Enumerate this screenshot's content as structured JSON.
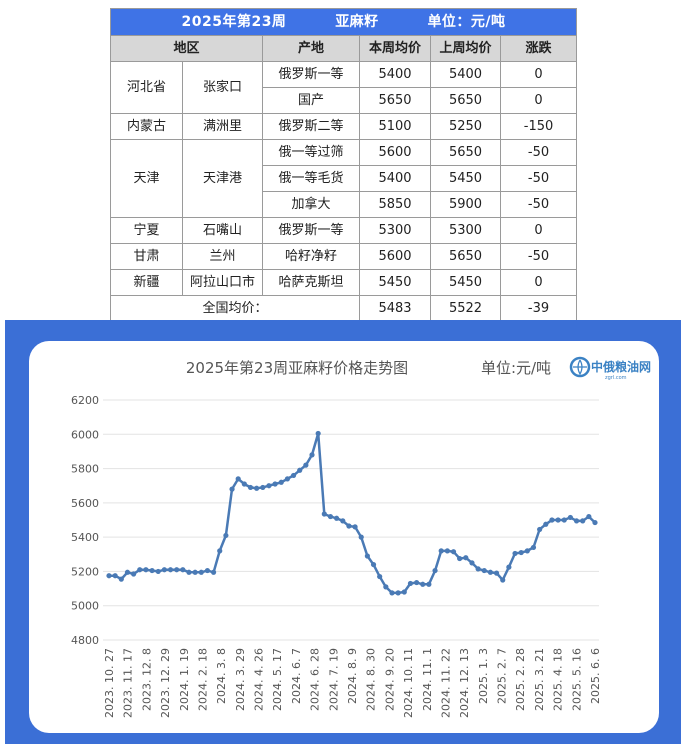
{
  "table": {
    "banner": {
      "title": "2025年第23周",
      "product": "亚麻籽",
      "unit": "单位：元/吨"
    },
    "headers": [
      "地区",
      "产地",
      "本周均价",
      "上周均价",
      "涨跌"
    ],
    "rows": [
      {
        "province": "河北省",
        "city": "张家口",
        "origin": "俄罗斯一等",
        "this_week": "5400",
        "last_week": "5400",
        "change": "0"
      },
      {
        "origin": "国产",
        "this_week": "5650",
        "last_week": "5650",
        "change": "0"
      },
      {
        "province": "内蒙古",
        "city": "满洲里",
        "origin": "俄罗斯二等",
        "this_week": "5100",
        "last_week": "5250",
        "change": "-150"
      },
      {
        "province": "天津",
        "city": "天津港",
        "origin": "俄一等过筛",
        "this_week": "5600",
        "last_week": "5650",
        "change": "-50"
      },
      {
        "origin": "俄一等毛货",
        "this_week": "5400",
        "last_week": "5450",
        "change": "-50"
      },
      {
        "origin": "加拿大",
        "this_week": "5850",
        "last_week": "5900",
        "change": "-50"
      },
      {
        "province": "宁夏",
        "city": "石嘴山",
        "origin": "俄罗斯一等",
        "this_week": "5300",
        "last_week": "5300",
        "change": "0"
      },
      {
        "province": "甘肃",
        "city": "兰州",
        "origin": "哈籽净籽",
        "this_week": "5600",
        "last_week": "5650",
        "change": "-50"
      },
      {
        "province": "新疆",
        "city": "阿拉山口市",
        "origin": "哈萨克斯坦",
        "this_week": "5450",
        "last_week": "5450",
        "change": "0"
      }
    ],
    "national_average": {
      "label": "全国均价：",
      "this_week": "5483",
      "last_week": "5522",
      "change": "-39"
    }
  },
  "chart_data": {
    "type": "line",
    "title": "2025年第23周亚麻籽价格走势图",
    "unit_label": "单位:元/吨",
    "brand_text": "中俄粮油网",
    "brand_subtext": "zgrl.com",
    "xlabel": "",
    "ylabel": "",
    "ylim": [
      4800,
      6200
    ],
    "yticks": [
      4800,
      5000,
      5200,
      5400,
      5600,
      5800,
      6000,
      6200
    ],
    "grid": true,
    "legend": "none",
    "line_color": "#4a7ab5",
    "x_tick_labels": [
      "2023. 10. 27",
      "2023. 11. 17",
      "2023. 12. 8",
      "2023. 12. 29",
      "2024. 1. 19",
      "2024. 2. 18",
      "2024. 3. 8",
      "2024. 3. 29",
      "2024. 4. 26",
      "2024. 5. 17",
      "2024. 6. 7",
      "2024. 6. 28",
      "2024. 7. 19",
      "2024. 8. 9",
      "2024. 8. 30",
      "2024. 9. 20",
      "2024. 10. 11",
      "2024. 11. 1",
      "2024. 11. 22",
      "2024. 12. 13",
      "2025. 1. 3",
      "2025. 2. 7",
      "2025. 2. 28",
      "2025. 3. 21",
      "2025. 4. 18",
      "2025. 5. 16",
      "2025. 6. 6"
    ],
    "values": [
      5175,
      5175,
      5155,
      5195,
      5185,
      5210,
      5210,
      5205,
      5200,
      5210,
      5210,
      5210,
      5210,
      5195,
      5195,
      5195,
      5205,
      5195,
      5320,
      5410,
      5680,
      5740,
      5710,
      5690,
      5685,
      5690,
      5700,
      5710,
      5720,
      5740,
      5760,
      5790,
      5820,
      5880,
      6005,
      5535,
      5520,
      5510,
      5495,
      5465,
      5460,
      5400,
      5290,
      5240,
      5170,
      5110,
      5075,
      5075,
      5080,
      5130,
      5135,
      5125,
      5125,
      5205,
      5320,
      5320,
      5315,
      5275,
      5280,
      5250,
      5215,
      5205,
      5195,
      5190,
      5150,
      5225,
      5305,
      5310,
      5320,
      5340,
      5445,
      5475,
      5500,
      5500,
      5500,
      5515,
      5495,
      5495,
      5520,
      5485
    ]
  }
}
